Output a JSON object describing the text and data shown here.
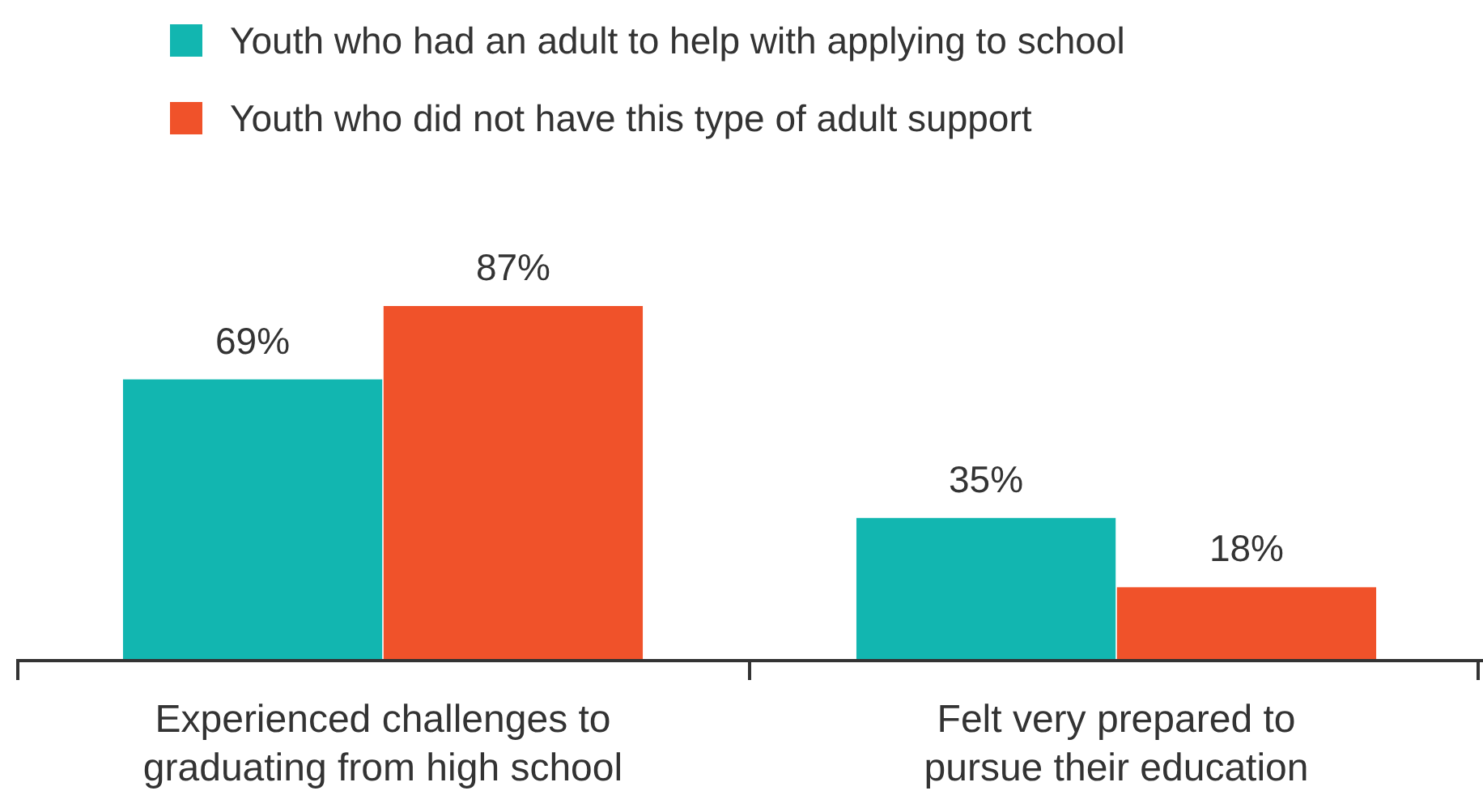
{
  "chart_data": {
    "type": "bar",
    "categories": [
      "Experienced challenges to graduating from high school",
      "Felt very prepared to pursue their education"
    ],
    "series": [
      {
        "name": "Youth who had an adult to help with applying to school",
        "color": "#12b6b0",
        "values": [
          69,
          35
        ],
        "value_labels": [
          "69%",
          "35%"
        ]
      },
      {
        "name": "Youth who did not have this type of adult support",
        "color": "#f0522a",
        "values": [
          87,
          18
        ],
        "value_labels": [
          "87%",
          "18%"
        ]
      }
    ],
    "legend": "top"
  }
}
